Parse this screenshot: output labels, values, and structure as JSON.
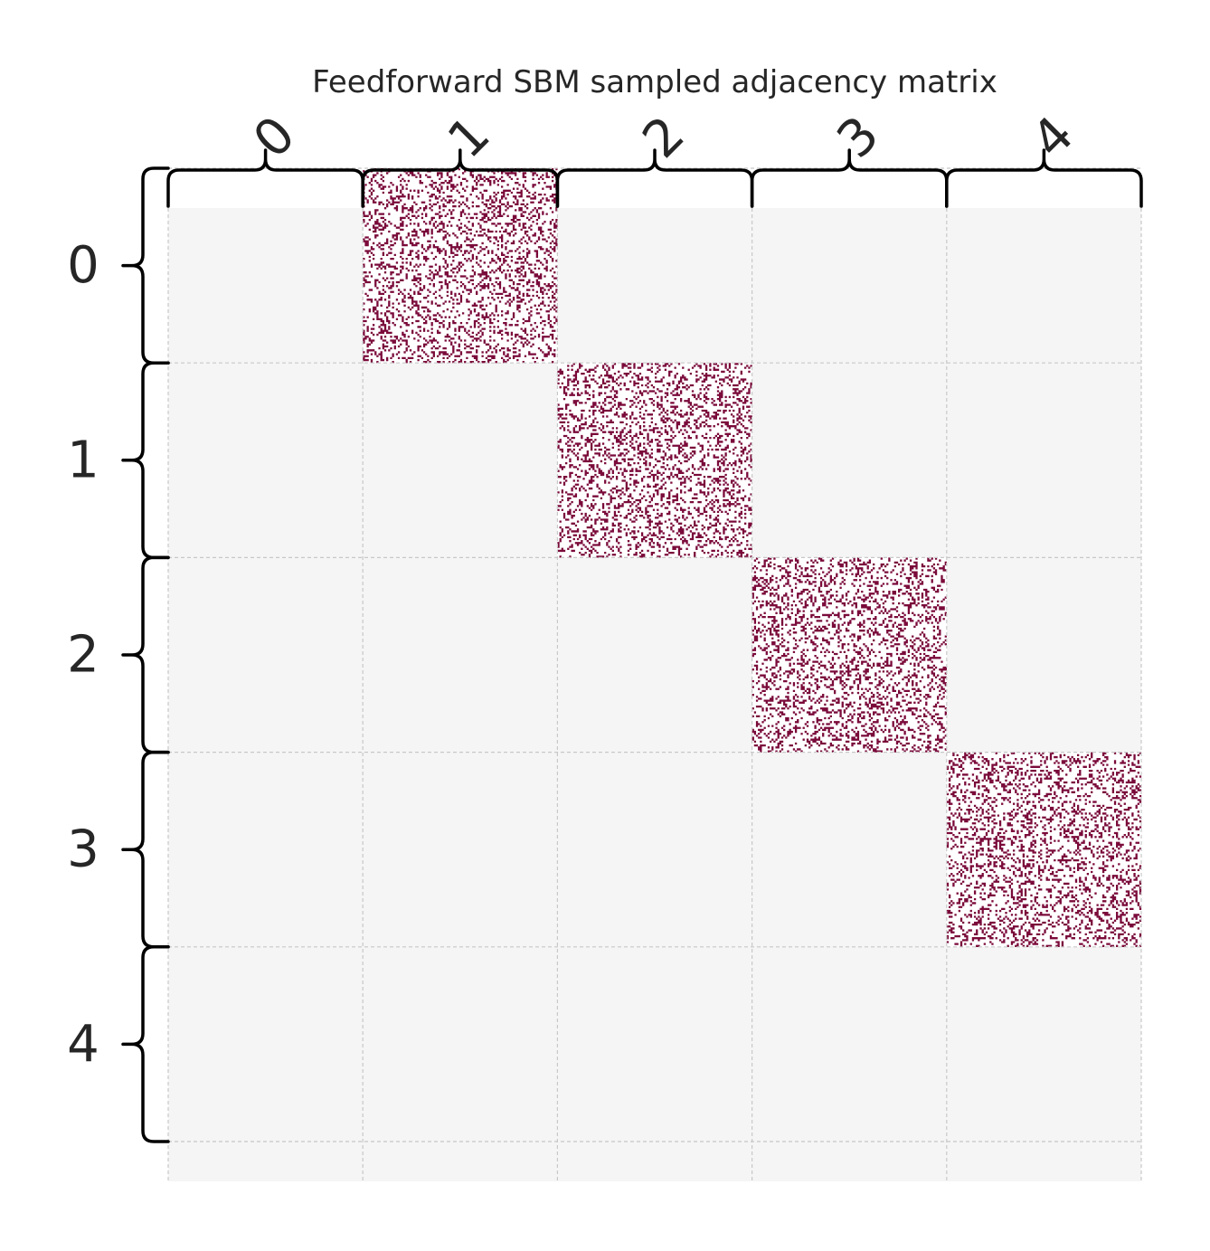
{
  "chart_data": {
    "type": "heatmap",
    "title": "Feedforward SBM sampled adjacency matrix",
    "x_tick_labels": [
      "0",
      "1",
      "2",
      "3",
      "4"
    ],
    "y_tick_labels": [
      "0",
      "1",
      "2",
      "3",
      "4"
    ],
    "block_sizes": [
      100,
      100,
      100,
      100,
      100
    ],
    "block_probabilities": [
      [
        0,
        0.25,
        0,
        0,
        0
      ],
      [
        0,
        0,
        0.25,
        0,
        0
      ],
      [
        0,
        0,
        0,
        0.25,
        0
      ],
      [
        0,
        0,
        0,
        0,
        0.25
      ],
      [
        0,
        0,
        0,
        0,
        0
      ]
    ],
    "value_range": [
      0,
      1
    ],
    "grid": true,
    "colors": {
      "background": "#f5f5f5",
      "edge": "#7a0a3a",
      "empty": "#ffffff",
      "grid": "#c8c8c8"
    }
  }
}
